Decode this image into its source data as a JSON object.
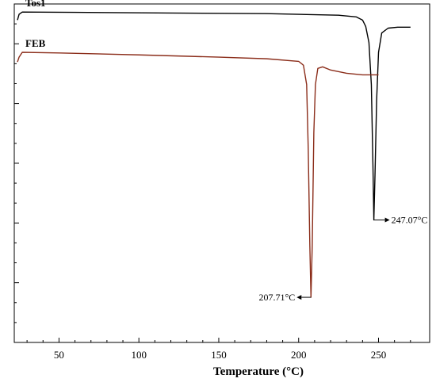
{
  "chart_data": {
    "type": "line",
    "title": "",
    "xlabel": "Temperature (°C)",
    "ylabel": "",
    "xlim": [
      22,
      282
    ],
    "ylim": [
      -1.0,
      0.05
    ],
    "x_ticks": [
      "50",
      "100",
      "150",
      "200",
      "250"
    ],
    "grid": false,
    "series": [
      {
        "name": "Tos1",
        "color": "#000000",
        "points": [
          [
            24,
            0.0
          ],
          [
            25,
            0.018
          ],
          [
            27,
            0.025
          ],
          [
            60,
            0.024
          ],
          [
            120,
            0.022
          ],
          [
            180,
            0.02
          ],
          [
            225,
            0.015
          ],
          [
            236,
            0.01
          ],
          [
            240,
            0.0
          ],
          [
            242,
            -0.02
          ],
          [
            244,
            -0.07
          ],
          [
            245.5,
            -0.2
          ],
          [
            246.5,
            -0.45
          ],
          [
            247.07,
            -0.62
          ],
          [
            247.8,
            -0.48
          ],
          [
            248.8,
            -0.25
          ],
          [
            250,
            -0.1
          ],
          [
            252,
            -0.04
          ],
          [
            256,
            -0.025
          ],
          [
            262,
            -0.022
          ],
          [
            270,
            -0.022
          ]
        ]
      },
      {
        "name": "FEB",
        "color": "#8b2d1a",
        "points": [
          [
            24,
            -0.13
          ],
          [
            25,
            -0.115
          ],
          [
            27,
            -0.1
          ],
          [
            50,
            -0.102
          ],
          [
            100,
            -0.108
          ],
          [
            150,
            -0.115
          ],
          [
            180,
            -0.12
          ],
          [
            200,
            -0.128
          ],
          [
            203,
            -0.14
          ],
          [
            205,
            -0.2
          ],
          [
            206,
            -0.4
          ],
          [
            207,
            -0.7
          ],
          [
            207.71,
            -0.86
          ],
          [
            208.5,
            -0.7
          ],
          [
            209.5,
            -0.35
          ],
          [
            210.5,
            -0.2
          ],
          [
            212,
            -0.15
          ],
          [
            215,
            -0.145
          ],
          [
            220,
            -0.155
          ],
          [
            230,
            -0.165
          ],
          [
            240,
            -0.17
          ],
          [
            250,
            -0.17
          ]
        ]
      }
    ],
    "annotations": [
      {
        "label": "247.07°C",
        "x": 247.07,
        "y": -0.62
      },
      {
        "label": "207.71°C",
        "x": 207.71,
        "y": -0.86
      }
    ]
  }
}
